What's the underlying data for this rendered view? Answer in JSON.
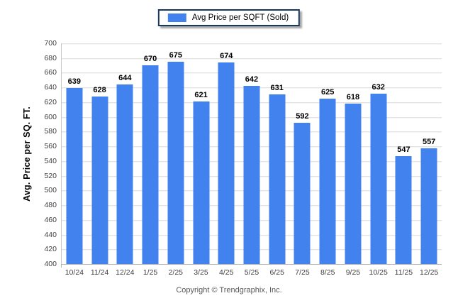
{
  "legend": {
    "label": "Avg Price per SQFT (Sold)",
    "swatch_color": "#4182ee"
  },
  "chart_data": {
    "type": "bar",
    "title": "",
    "xlabel": "",
    "ylabel": "Avg. Price per SQ. FT.",
    "categories": [
      "10/24",
      "11/24",
      "12/24",
      "1/25",
      "2/25",
      "3/25",
      "4/25",
      "5/25",
      "6/25",
      "7/25",
      "8/25",
      "9/25",
      "10/25",
      "11/25",
      "12/25"
    ],
    "values": [
      639,
      628,
      644,
      670,
      675,
      621,
      674,
      642,
      631,
      592,
      625,
      618,
      632,
      547,
      557
    ],
    "series_name": "Avg Price per SQFT (Sold)",
    "ylim": [
      400,
      700
    ],
    "ytick_step": 20,
    "grid": true,
    "legend_position": "top",
    "bar_color": "#4182ee"
  },
  "footer": {
    "copyright": "Copyright © Trendgraphix, Inc."
  },
  "colors": {
    "bar": "#4182ee",
    "legend_border": "#17375e",
    "grid": "#e3e3e3",
    "axis": "#b4b4b4",
    "tick_label": "#404040",
    "value_label": "#000000",
    "copyright": "#595959"
  }
}
